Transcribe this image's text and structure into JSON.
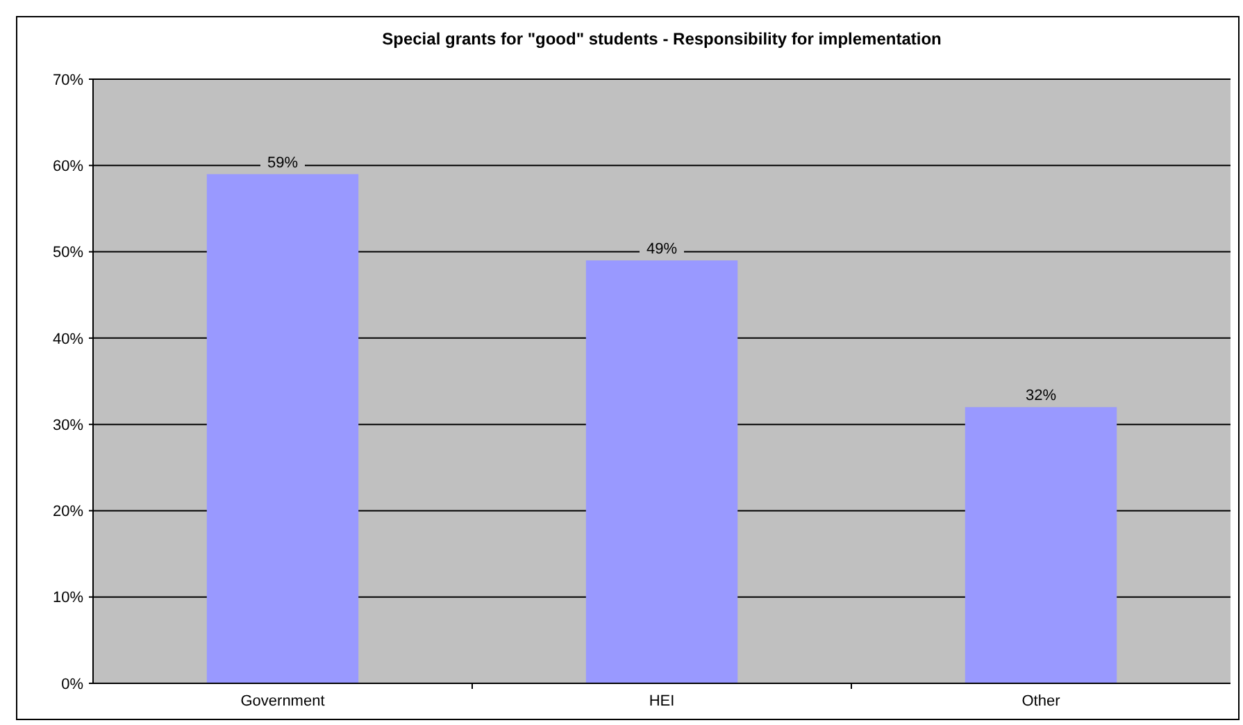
{
  "chart_data": {
    "type": "bar",
    "title": "Special grants for \"good\" students - Responsibility for implementation",
    "categories": [
      "Government",
      "HEI",
      "Other"
    ],
    "values": [
      59,
      49,
      32
    ],
    "value_labels": [
      "59%",
      "49%",
      "32%"
    ],
    "color": "#9999ff",
    "ylim": [
      0,
      70
    ],
    "yticks": [
      {
        "value": 0,
        "label": "0%"
      },
      {
        "value": 10,
        "label": "10%"
      },
      {
        "value": 20,
        "label": "20%"
      },
      {
        "value": 30,
        "label": "30%"
      },
      {
        "value": 40,
        "label": "40%"
      },
      {
        "value": 50,
        "label": "50%"
      },
      {
        "value": 60,
        "label": "60%"
      },
      {
        "value": 70,
        "label": "70%"
      }
    ],
    "grid": "y"
  }
}
